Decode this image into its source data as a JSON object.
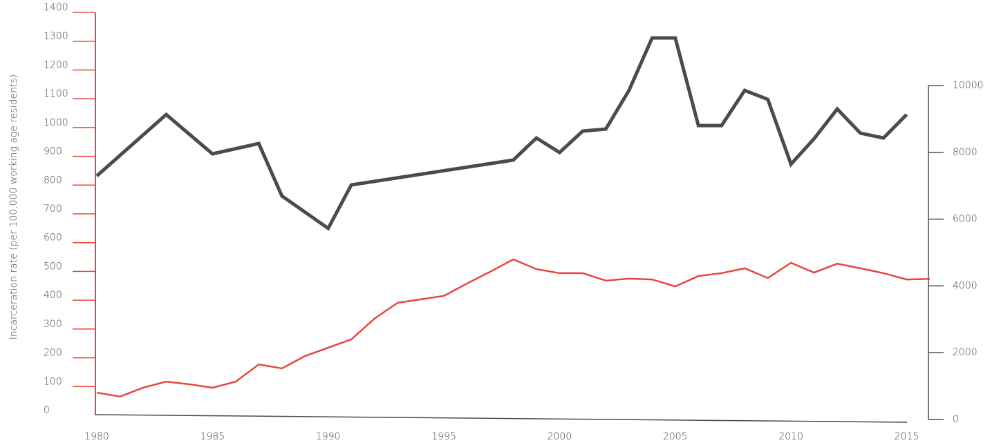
{
  "chart_data": {
    "type": "line",
    "y_label": "Incarceration rate (per 100,000 working age residents)",
    "xlim": [
      1980,
      2016
    ],
    "xticks": [
      1980,
      1985,
      1990,
      1995,
      2000,
      2005,
      2010,
      2015
    ],
    "ylim": [
      0,
      1400
    ],
    "yticks": [
      0,
      100,
      200,
      300,
      400,
      500,
      600,
      700,
      800,
      900,
      1000,
      1100,
      1200,
      1300,
      1400
    ],
    "y2lim": [
      0,
      12000
    ],
    "y2ticks": [
      0,
      2000,
      4000,
      6000,
      8000,
      10000
    ],
    "left_axis_color": "#e8453c",
    "right_axis_color": "#4a4a52",
    "series": [
      {
        "color": "#e8453c",
        "axis": "y",
        "x": [
          1980,
          1981,
          1982,
          1983,
          1984,
          1985,
          1986,
          1987,
          1988,
          1989,
          1990,
          1991,
          1992,
          1993,
          1994,
          1995,
          1996,
          1997,
          1998,
          1999,
          2000,
          2001,
          2002,
          2003,
          2004,
          2005,
          2006,
          2007,
          2008,
          2009,
          2010,
          2011,
          2012,
          2013,
          2014,
          2015,
          2016
        ],
        "values": [
          79,
          65,
          96,
          117,
          108,
          96,
          117,
          177,
          163,
          206,
          235,
          264,
          336,
          391,
          403,
          415,
          458,
          499,
          542,
          508,
          494,
          494,
          468,
          475,
          472,
          448,
          484,
          494,
          511,
          477,
          530,
          496,
          527,
          511,
          494,
          472,
          474
        ]
      },
      {
        "color": "#4a4a52",
        "axis": "y2",
        "x": [
          1980,
          1983,
          1985,
          1987,
          1988,
          1990,
          1991,
          1998,
          1999,
          2000,
          2001,
          2002,
          2003,
          2004,
          2005,
          2006,
          2007,
          2008,
          2009,
          2010,
          2011,
          2012,
          2013,
          2014,
          2015
        ],
        "values": [
          7293,
          9132,
          7955,
          8264,
          6694,
          5723,
          7025,
          7769,
          8430,
          7996,
          8636,
          8698,
          9855,
          11426,
          11426,
          8802,
          8802,
          9855,
          9587,
          7645,
          8409,
          9298,
          8574,
          8430,
          9132
        ]
      }
    ]
  }
}
